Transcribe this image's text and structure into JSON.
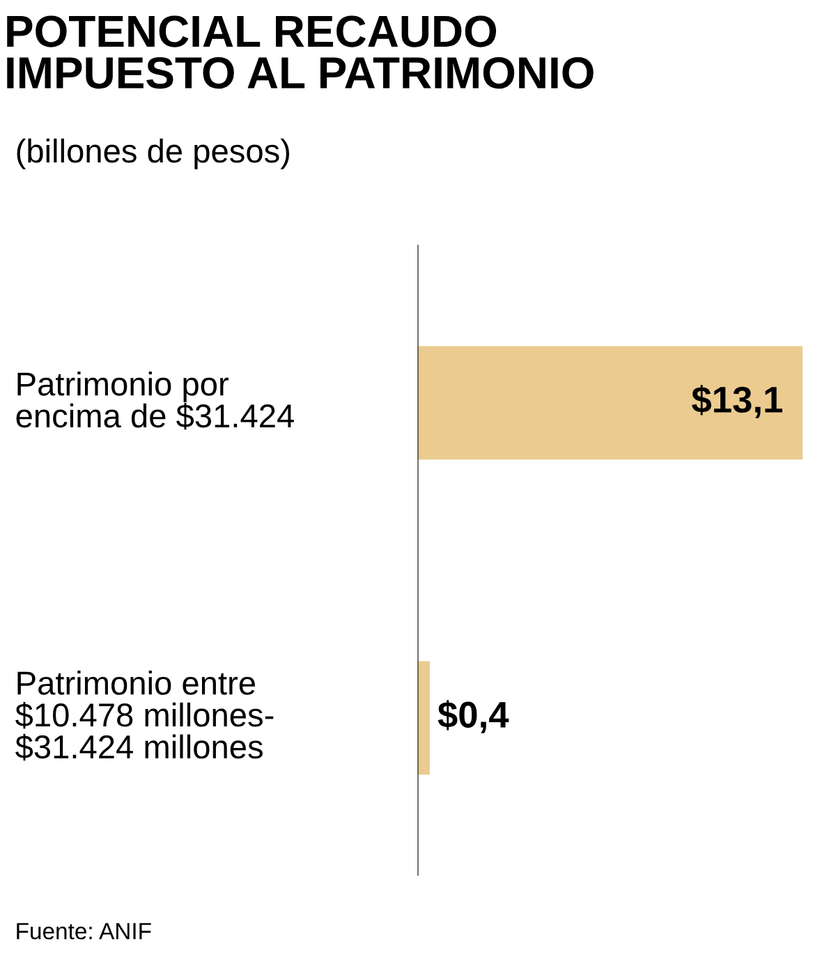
{
  "chart_data": {
    "type": "bar",
    "orientation": "horizontal",
    "title": "POTENCIAL RECAUDO\nIMPUESTO AL PATRIMONIO",
    "subtitle": "(billones de pesos)",
    "categories": [
      "Patrimonio por\nencima de $31.424",
      "Patrimonio entre\n$10.478 millones-\n$31.424 millones"
    ],
    "values": [
      13.1,
      0.4
    ],
    "value_labels": [
      "$13,1",
      "$0,4"
    ],
    "color": "#ebcb8f",
    "annotations": [
      "Fuente: ANIF"
    ]
  }
}
